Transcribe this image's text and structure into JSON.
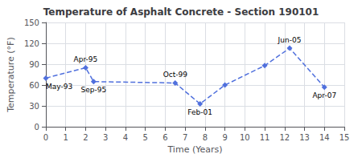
{
  "chart_data": {
    "type": "line",
    "title": "Temperature of Asphalt Concrete - Section 190101",
    "xlabel": "Time (Years)",
    "ylabel": "Temperature (°F)",
    "x": [
      0,
      2.0,
      2.4,
      6.5,
      7.75,
      9.0,
      11.0,
      12.25,
      14.0
    ],
    "values": [
      70,
      85,
      65,
      63,
      33,
      60,
      88,
      113,
      57
    ],
    "xlim": [
      0,
      15
    ],
    "ylim": [
      0,
      150
    ],
    "xticks": [
      0,
      1,
      2,
      3,
      4,
      5,
      6,
      7,
      8,
      9,
      10,
      11,
      12,
      13,
      14,
      15
    ],
    "yticks": [
      0,
      30,
      60,
      90,
      120,
      150
    ],
    "grid": true,
    "marker": "diamond",
    "line_style": "dashed",
    "annotations": [
      {
        "label": "May-93",
        "x": 0,
        "y": 70
      },
      {
        "label": "Apr-95",
        "x": 2.0,
        "y": 85
      },
      {
        "label": "Sep-95",
        "x": 2.4,
        "y": 65
      },
      {
        "label": "Oct-99",
        "x": 6.5,
        "y": 63
      },
      {
        "label": "Feb-01",
        "x": 7.75,
        "y": 33
      },
      {
        "label": "Jun-05",
        "x": 12.25,
        "y": 113
      },
      {
        "label": "Apr-07",
        "x": 14.0,
        "y": 57
      }
    ]
  }
}
